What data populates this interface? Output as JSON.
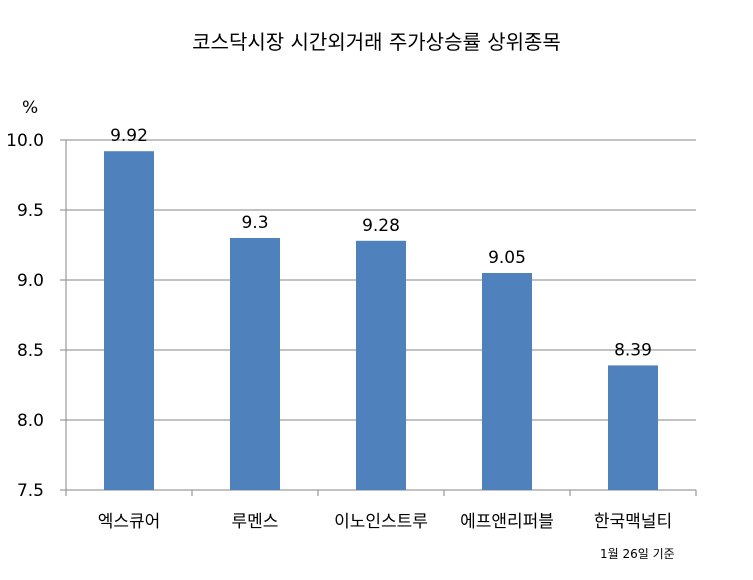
{
  "chart_data": {
    "type": "bar",
    "title": "코스닥시장 시간외거래  주가상승률 상위종목",
    "ylabel": "%",
    "categories": [
      "엑스큐어",
      "루멘스",
      "이노인스트루",
      "에프앤리퍼블",
      "한국맥널티"
    ],
    "values": [
      9.92,
      9.3,
      9.28,
      9.05,
      8.39
    ],
    "data_labels": [
      "9.92",
      "9.3",
      "9.28",
      "9.05",
      "8.39"
    ],
    "ylim": [
      7.5,
      10.0
    ],
    "yticks": [
      "7.5",
      "8.0",
      "8.5",
      "9.0",
      "9.5",
      "10.0"
    ],
    "grid": true,
    "bar_color": "#4f81bd",
    "gridline_color": "#868686",
    "axis_color": "#868686",
    "footnote": "1월 26일 기준"
  }
}
